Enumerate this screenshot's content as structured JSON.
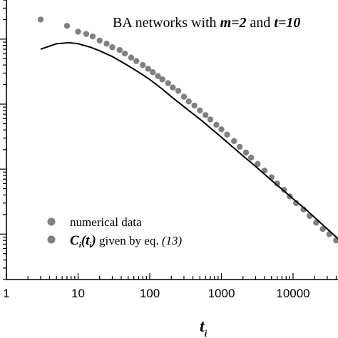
{
  "chart_data": {
    "type": "scatter",
    "title": {
      "prefix": "BA networks with ",
      "m_label": "m=2",
      "and": " and ",
      "t_label": "t=10"
    },
    "xlabel": "t",
    "xlabel_sub": "i",
    "ylabel": "",
    "x_scale": "log",
    "y_scale": "log",
    "xlim": [
      1,
      50000
    ],
    "ylim": [
      2e-05,
      0.4
    ],
    "x_tick_labels": [
      "1",
      "10",
      "100",
      "1000",
      "10000"
    ],
    "x_ticks": [
      1,
      10,
      100,
      1000,
      10000
    ],
    "legend": {
      "placement": "bottom-left",
      "entries": [
        {
          "label": "numerical data"
        },
        {
          "label_main": "C",
          "label_sub1": "i",
          "label_paren": "(t",
          "label_sub2": "i",
          "label_close": ")",
          "label_rest": " given by eq. ",
          "label_ref": "(13)"
        }
      ]
    },
    "colors": {
      "marker": "#808080",
      "line": "#000000",
      "axis": "#000000"
    },
    "series": [
      {
        "name": "numerical data",
        "kind": "scatter",
        "points": [
          [
            3,
            0.2
          ],
          [
            7,
            0.16
          ],
          [
            10,
            0.13
          ],
          [
            13,
            0.12
          ],
          [
            16,
            0.11
          ],
          [
            20,
            0.095
          ],
          [
            25,
            0.085
          ],
          [
            30,
            0.075
          ],
          [
            38,
            0.068
          ],
          [
            45,
            0.06
          ],
          [
            55,
            0.052
          ],
          [
            65,
            0.046
          ],
          [
            80,
            0.04
          ],
          [
            95,
            0.035
          ],
          [
            110,
            0.031
          ],
          [
            130,
            0.027
          ],
          [
            150,
            0.024
          ],
          [
            180,
            0.021
          ],
          [
            210,
            0.018
          ],
          [
            250,
            0.016
          ],
          [
            300,
            0.013
          ],
          [
            350,
            0.011
          ],
          [
            420,
            0.0095
          ],
          [
            500,
            0.008
          ],
          [
            600,
            0.0068
          ],
          [
            700,
            0.0058
          ],
          [
            850,
            0.0048
          ],
          [
            1000,
            0.0041
          ],
          [
            1200,
            0.0034
          ],
          [
            1500,
            0.0027
          ],
          [
            1800,
            0.0022
          ],
          [
            2200,
            0.0018
          ],
          [
            2600,
            0.0015
          ],
          [
            3200,
            0.0012
          ],
          [
            4000,
            0.00095
          ],
          [
            5000,
            0.00075
          ],
          [
            6000,
            0.0006
          ],
          [
            7500,
            0.00048
          ],
          [
            9000,
            0.00038
          ],
          [
            11000,
            0.0003
          ],
          [
            14000,
            0.00024
          ],
          [
            17000,
            0.00019
          ],
          [
            21000,
            0.00015
          ],
          [
            26000,
            0.00012
          ],
          [
            32000,
            0.0001
          ],
          [
            40000,
            8e-05
          ]
        ]
      },
      {
        "name": "C_i(t_i) given by eq. (13)",
        "kind": "line",
        "points": [
          [
            3,
            0.07
          ],
          [
            5,
            0.085
          ],
          [
            7.5,
            0.088
          ],
          [
            10,
            0.085
          ],
          [
            15,
            0.075
          ],
          [
            20,
            0.066
          ],
          [
            30,
            0.054
          ],
          [
            50,
            0.039
          ],
          [
            70,
            0.031
          ],
          [
            100,
            0.024
          ],
          [
            150,
            0.017
          ],
          [
            200,
            0.013
          ],
          [
            300,
            0.0091
          ],
          [
            500,
            0.0059
          ],
          [
            700,
            0.0043
          ],
          [
            1000,
            0.0031
          ],
          [
            1500,
            0.0021
          ],
          [
            2000,
            0.0016
          ],
          [
            3000,
            0.0011
          ],
          [
            5000,
            0.00067
          ],
          [
            7000,
            0.00049
          ],
          [
            10000,
            0.00035
          ],
          [
            15000,
            0.00024
          ],
          [
            20000,
            0.00018
          ],
          [
            30000,
            0.00012
          ],
          [
            45000,
            8e-05
          ]
        ]
      }
    ]
  }
}
